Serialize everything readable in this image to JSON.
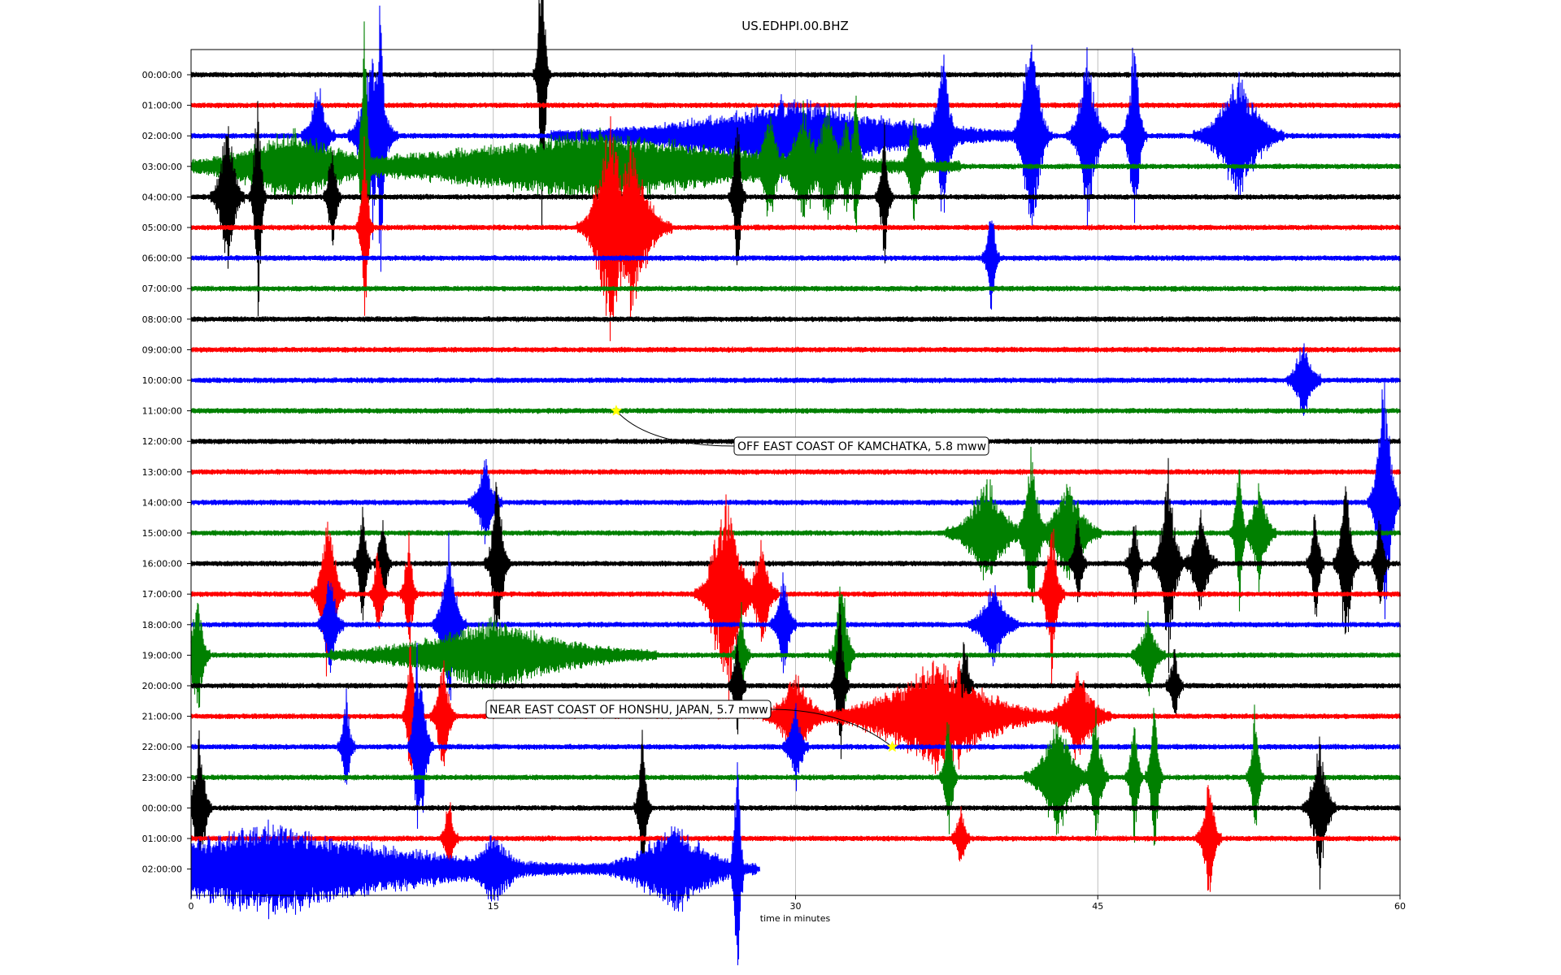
{
  "chart_data": {
    "type": "line",
    "title": "US.EDHPI.00.BHZ",
    "xlabel": "time in minutes",
    "ylabel": "",
    "xlim": [
      0,
      60
    ],
    "x_ticks": [
      "0",
      "15",
      "30",
      "45",
      "60"
    ],
    "grid": "vertical",
    "row_colors": [
      "#000000",
      "#ff0000",
      "#0000ff",
      "#008000"
    ],
    "rows": [
      {
        "label": "00:00:00",
        "end_minute": 60,
        "bursts": [
          [
            17.4,
            20,
            1.4
          ]
        ]
      },
      {
        "label": "01:00:00",
        "end_minute": 60,
        "bursts": []
      },
      {
        "label": "02:00:00",
        "end_minute": 60,
        "bursts": [
          [
            9.4,
            20,
            1.6
          ],
          [
            9,
            60,
            0.9
          ],
          [
            6.3,
            40,
            0.5
          ],
          [
            29.3,
            20,
            0.5
          ],
          [
            37.3,
            40,
            0.9
          ],
          [
            41.7,
            50,
            1.1
          ],
          [
            44.5,
            50,
            0.8
          ],
          [
            46.8,
            30,
            1.0
          ],
          [
            52,
            110,
            0.6
          ],
          [
            30,
            600,
            0.3
          ]
        ]
      },
      {
        "label": "03:00:00",
        "end_minute": 60,
        "bursts": [
          [
            8.6,
            20,
            1.4
          ],
          [
            5,
            300,
            0.3
          ],
          [
            28.7,
            40,
            0.6
          ],
          [
            30.4,
            60,
            0.6
          ],
          [
            31.6,
            60,
            0.6
          ],
          [
            32.5,
            30,
            0.5
          ],
          [
            33,
            20,
            0.9
          ],
          [
            35.9,
            30,
            0.6
          ],
          [
            20,
            900,
            0.3
          ]
        ]
      },
      {
        "label": "04:00:00",
        "end_minute": 60,
        "bursts": [
          [
            1.8,
            40,
            0.8
          ],
          [
            3.3,
            20,
            1.2
          ],
          [
            7,
            20,
            0.6
          ],
          [
            27.1,
            20,
            0.9
          ],
          [
            34.4,
            20,
            0.7
          ]
        ]
      },
      {
        "label": "05:00:00",
        "end_minute": 60,
        "bursts": [
          [
            8.6,
            20,
            0.9
          ],
          [
            20.8,
            80,
            1.1
          ],
          [
            21.8,
            100,
            0.8
          ]
        ]
      },
      {
        "label": "06:00:00",
        "end_minute": 60,
        "bursts": [
          [
            39.7,
            20,
            0.6
          ]
        ]
      },
      {
        "label": "07:00:00",
        "end_minute": 60,
        "bursts": []
      },
      {
        "label": "08:00:00",
        "end_minute": 60,
        "bursts": []
      },
      {
        "label": "09:00:00",
        "end_minute": 60,
        "bursts": []
      },
      {
        "label": "10:00:00",
        "end_minute": 60,
        "bursts": [
          [
            55.2,
            40,
            0.4
          ]
        ]
      },
      {
        "label": "11:00:00",
        "end_minute": 60,
        "bursts": []
      },
      {
        "label": "12:00:00",
        "end_minute": 60,
        "bursts": []
      },
      {
        "label": "13:00:00",
        "end_minute": 60,
        "bursts": []
      },
      {
        "label": "14:00:00",
        "end_minute": 60,
        "bursts": [
          [
            14.6,
            40,
            0.4
          ],
          [
            59.2,
            40,
            1.4
          ]
        ]
      },
      {
        "label": "15:00:00",
        "end_minute": 60,
        "bursts": [
          [
            39.5,
            100,
            0.5
          ],
          [
            41.7,
            40,
            0.8
          ],
          [
            43.5,
            80,
            0.5
          ],
          [
            52,
            20,
            0.8
          ],
          [
            53,
            40,
            0.5
          ]
        ]
      },
      {
        "label": "16:00:00",
        "end_minute": 60,
        "bursts": [
          [
            8.5,
            20,
            0.6
          ],
          [
            9.5,
            20,
            0.5
          ],
          [
            15.2,
            30,
            0.9
          ],
          [
            44,
            20,
            0.5
          ],
          [
            46.8,
            20,
            0.5
          ],
          [
            48.5,
            40,
            0.9
          ],
          [
            50.1,
            40,
            0.5
          ],
          [
            55.8,
            20,
            0.6
          ],
          [
            57.3,
            30,
            0.9
          ],
          [
            59,
            20,
            0.5
          ]
        ]
      },
      {
        "label": "17:00:00",
        "end_minute": 60,
        "bursts": [
          [
            6.8,
            40,
            0.9
          ],
          [
            9.3,
            20,
            0.5
          ],
          [
            10.8,
            20,
            0.6
          ],
          [
            26,
            40,
            0.6
          ],
          [
            26.6,
            80,
            1.0
          ],
          [
            28.3,
            40,
            0.5
          ],
          [
            42.7,
            30,
            0.8
          ]
        ]
      },
      {
        "label": "18:00:00",
        "end_minute": 60,
        "bursts": [
          [
            6.9,
            30,
            0.5
          ],
          [
            12.8,
            40,
            0.8
          ],
          [
            29.4,
            30,
            0.5
          ],
          [
            39.8,
            60,
            0.4
          ]
        ]
      },
      {
        "label": "19:00:00",
        "end_minute": 60,
        "bursts": [
          [
            0.3,
            30,
            0.6
          ],
          [
            27.3,
            20,
            0.5
          ],
          [
            32.3,
            30,
            0.8
          ],
          [
            15,
            400,
            0.3
          ],
          [
            47.5,
            40,
            0.4
          ]
        ]
      },
      {
        "label": "20:00:00",
        "end_minute": 60,
        "bursts": [
          [
            27.1,
            20,
            0.5
          ],
          [
            32.2,
            20,
            0.9
          ],
          [
            38.4,
            20,
            0.5
          ],
          [
            48.8,
            20,
            0.4
          ]
        ]
      },
      {
        "label": "21:00:00",
        "end_minute": 60,
        "bursts": [
          [
            10.9,
            20,
            0.8
          ],
          [
            12.5,
            30,
            0.6
          ],
          [
            30,
            80,
            0.4
          ],
          [
            37,
            300,
            0.5
          ],
          [
            38.1,
            20,
            0.6
          ],
          [
            44,
            80,
            0.4
          ]
        ]
      },
      {
        "label": "22:00:00",
        "end_minute": 60,
        "bursts": [
          [
            7.7,
            20,
            0.5
          ],
          [
            11.2,
            20,
            1.0
          ],
          [
            11.4,
            30,
            0.8
          ],
          [
            30,
            30,
            0.4
          ]
        ]
      },
      {
        "label": "23:00:00",
        "end_minute": 60,
        "bursts": [
          [
            37.6,
            20,
            0.7
          ],
          [
            43,
            80,
            0.6
          ],
          [
            44.9,
            30,
            0.6
          ],
          [
            46.8,
            20,
            0.7
          ],
          [
            47.8,
            20,
            0.9
          ],
          [
            52.8,
            20,
            0.7
          ]
        ]
      },
      {
        "label": "00:00:00",
        "end_minute": 60,
        "bursts": [
          [
            0.4,
            30,
            0.7
          ],
          [
            22.4,
            20,
            0.8
          ],
          [
            56,
            40,
            0.7
          ]
        ]
      },
      {
        "label": "01:00:00",
        "end_minute": 60,
        "bursts": [
          [
            12.8,
            20,
            0.4
          ],
          [
            38.2,
            20,
            0.3
          ],
          [
            50.5,
            30,
            0.6
          ]
        ]
      },
      {
        "label": "02:00:00",
        "end_minute": 28.2,
        "bursts": [
          [
            4,
            800,
            0.4
          ],
          [
            27.1,
            20,
            1.2
          ],
          [
            24,
            200,
            0.4
          ],
          [
            15,
            100,
            0.3
          ]
        ]
      }
    ],
    "events": [
      {
        "label": "OFF EAST COAST OF KAMCHATKA, 5.8 mww",
        "row": 11,
        "minute": 21.1,
        "marker_color": "#ffff00"
      },
      {
        "label": "NEAR EAST COAST OF HONSHU, JAPAN, 5.7 mww",
        "row": 22,
        "minute": 34.8,
        "marker_color": "#ffff00"
      }
    ]
  }
}
